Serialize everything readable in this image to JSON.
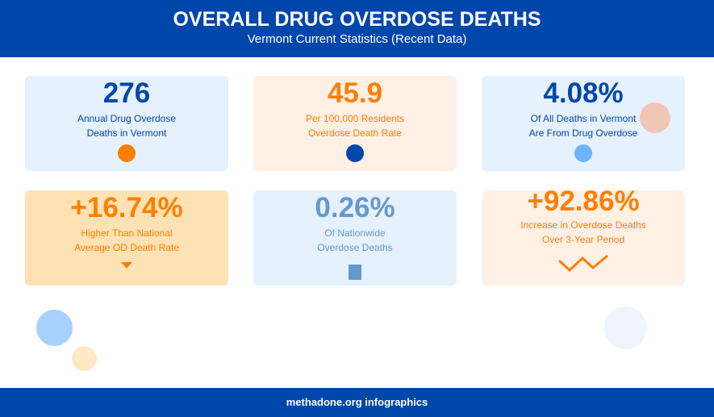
{
  "header": {
    "title": "OVERALL DRUG OVERDOSE DEATHS",
    "subtitle": "Vermont Current Statistics (Recent Data)"
  },
  "cards": [
    {
      "value": "276",
      "line1": "Annual Drug Overdose",
      "line2": "Deaths in Vermont",
      "icon": "circle-icon",
      "color": "#0047ab",
      "bg": "#e6f1fe",
      "icon_color": "#ff7f00"
    },
    {
      "value": "45.9",
      "line1": "Per 100,000 Residents",
      "line2": "Overdose Death Rate",
      "icon": "circle-icon",
      "color": "#ff7f00",
      "bg": "#fff0e6",
      "icon_color": "#0047ab"
    },
    {
      "value": "4.08%",
      "line1": "Of All Deaths in Vermont",
      "line2": "Are From Drug Overdose",
      "icon": "circle-icon",
      "color": "#0047ab",
      "bg": "#e6f1fe",
      "icon_color": "#6cb4fe"
    },
    {
      "value": "+16.74%",
      "line1": "Higher Than National",
      "line2": "Average OD Death Rate",
      "icon": "triangle-down-icon",
      "color": "#ff7f00",
      "bg": "#ffe2b3",
      "icon_color": "#ff7f00"
    },
    {
      "value": "0.26%",
      "line1": "Of Nationwide",
      "line2": "Overdose Deaths",
      "icon": "bar-icon",
      "color": "#6699cc",
      "bg": "#e6f1fe",
      "icon_color": "#6699cc"
    },
    {
      "value": "+92.86%",
      "line1": "Increase in Overdose Deaths",
      "line2": "Over 3-Year Period",
      "icon": "zigzag-trend-icon",
      "color": "#ff7f00",
      "bg": "#fff0e6",
      "icon_color": "#ff7f00"
    }
  ],
  "footer": {
    "text": "methadone.org infographics"
  }
}
